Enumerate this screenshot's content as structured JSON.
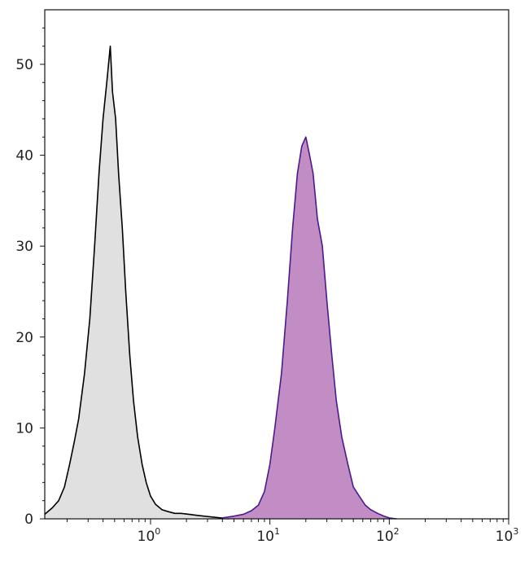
{
  "chart_data": {
    "type": "area",
    "title": "",
    "xlabel": "",
    "ylabel": "",
    "x_scale": "log",
    "xlim": [
      0.13,
      1000
    ],
    "ylim": [
      0,
      56
    ],
    "grid": false,
    "x_ticks": [
      {
        "value": 1,
        "base": "10",
        "exp": "0"
      },
      {
        "value": 10,
        "base": "10",
        "exp": "1"
      },
      {
        "value": 100,
        "base": "10",
        "exp": "2"
      },
      {
        "value": 1000,
        "base": "10",
        "exp": "3"
      }
    ],
    "y_ticks": [
      "0",
      "10",
      "20",
      "30",
      "40",
      "50"
    ],
    "series": [
      {
        "fill": "#e0e0e0",
        "stroke": "#000000",
        "x": [
          0.13,
          0.15,
          0.17,
          0.19,
          0.21,
          0.23,
          0.25,
          0.28,
          0.31,
          0.34,
          0.37,
          0.4,
          0.43,
          0.46,
          0.48,
          0.51,
          0.54,
          0.58,
          0.62,
          0.67,
          0.72,
          0.78,
          0.85,
          0.92,
          1.0,
          1.1,
          1.25,
          1.4,
          1.6,
          1.8,
          2.1,
          2.4,
          2.8,
          3.3,
          3.9,
          4.5
        ],
        "y": [
          0.5,
          1.2,
          2.0,
          3.5,
          6.0,
          8.5,
          11.0,
          16.0,
          22.0,
          30.0,
          38.0,
          44.0,
          48.0,
          52.0,
          47.0,
          44.0,
          38.0,
          32.0,
          25.0,
          18.0,
          13.0,
          9.0,
          6.0,
          4.0,
          2.5,
          1.6,
          1.0,
          0.8,
          0.6,
          0.6,
          0.5,
          0.4,
          0.3,
          0.2,
          0.1,
          0.0
        ]
      },
      {
        "fill": "#c28dc4",
        "stroke": "#4b1a8c",
        "x": [
          4.0,
          5.0,
          6.0,
          7.0,
          8.0,
          9.0,
          10.0,
          11.0,
          12.5,
          14.0,
          15.5,
          17.0,
          18.5,
          20.0,
          21.5,
          23.0,
          25.0,
          27.5,
          30.0,
          33.0,
          36.0,
          40.0,
          45.0,
          50.0,
          56.0,
          63.0,
          70.0,
          80.0,
          90.0,
          100.0,
          115.0
        ],
        "y": [
          0.1,
          0.3,
          0.5,
          0.9,
          1.5,
          3.0,
          6.0,
          10.0,
          16.0,
          24.0,
          32.0,
          38.0,
          41.0,
          42.0,
          40.0,
          38.0,
          33.0,
          30.0,
          24.0,
          18.0,
          13.0,
          9.0,
          6.0,
          3.5,
          2.5,
          1.5,
          1.0,
          0.6,
          0.3,
          0.1,
          0.0
        ]
      }
    ]
  }
}
